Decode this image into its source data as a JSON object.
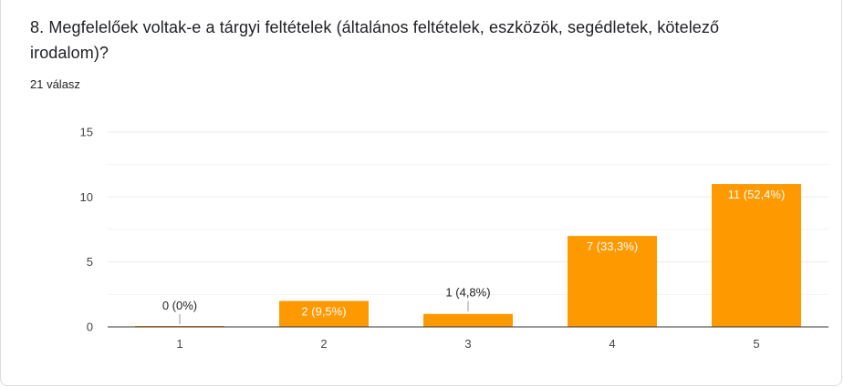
{
  "question": {
    "title": "8. Megfelelőek voltak-e a tárgyi feltételek (általános feltételek, eszközök, segédletek, kötelező irodalom)?",
    "response_count": "21 válasz"
  },
  "colors": {
    "bar": "#ff9900",
    "grid": "#ebebeb",
    "axis": "#333333"
  },
  "chart_data": {
    "type": "bar",
    "categories": [
      "1",
      "2",
      "3",
      "4",
      "5"
    ],
    "values": [
      0,
      2,
      1,
      7,
      11
    ],
    "data_labels": [
      "0 (0%)",
      "2 (9,5%)",
      "1 (4,8%)",
      "7 (33,3%)",
      "11 (52,4%)"
    ],
    "yticks": [
      "0",
      "5",
      "10",
      "15"
    ],
    "ylim": [
      0,
      15
    ],
    "grid": true
  }
}
